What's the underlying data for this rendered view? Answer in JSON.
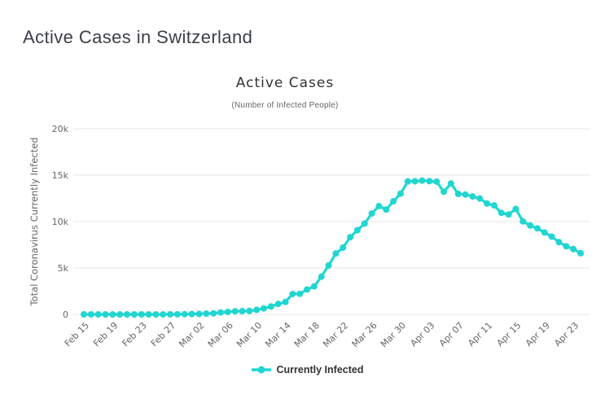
{
  "page": {
    "title": "Active Cases in Switzerland"
  },
  "colors": {
    "series_line": "#21d6d1",
    "gridline": "#e6e6e6",
    "axis_text": "#666666",
    "chart_title_text": "#333333",
    "page_title_text": "#3b3f46"
  },
  "chart_data": {
    "type": "line",
    "title": "Active Cases",
    "subtitle": "(Number of Infected People)",
    "xlabel": "",
    "ylabel": "Total Coronavirus Currently Infected",
    "ylim": [
      0,
      20000
    ],
    "grid": "horizontal",
    "legend_position": "bottom",
    "y_ticks": [
      {
        "value": 0,
        "label": "0"
      },
      {
        "value": 5000,
        "label": "5k"
      },
      {
        "value": 10000,
        "label": "10k"
      },
      {
        "value": 15000,
        "label": "15k"
      },
      {
        "value": 20000,
        "label": "20k"
      }
    ],
    "x_tick_interval": 4,
    "x_tick_labels": [
      "Feb 15",
      "Feb 19",
      "Feb 23",
      "Feb 27",
      "Mar 02",
      "Mar 06",
      "Mar 10",
      "Mar 14",
      "Mar 18",
      "Mar 22",
      "Mar 26",
      "Mar 30",
      "Apr 03",
      "Apr 07",
      "Apr 11",
      "Apr 15",
      "Apr 19",
      "Apr 23"
    ],
    "x": [
      "Feb 15",
      "Feb 16",
      "Feb 17",
      "Feb 18",
      "Feb 19",
      "Feb 20",
      "Feb 21",
      "Feb 22",
      "Feb 23",
      "Feb 24",
      "Feb 25",
      "Feb 26",
      "Feb 27",
      "Feb 28",
      "Feb 29",
      "Mar 01",
      "Mar 02",
      "Mar 03",
      "Mar 04",
      "Mar 05",
      "Mar 06",
      "Mar 07",
      "Mar 08",
      "Mar 09",
      "Mar 10",
      "Mar 11",
      "Mar 12",
      "Mar 13",
      "Mar 14",
      "Mar 15",
      "Mar 16",
      "Mar 17",
      "Mar 18",
      "Mar 19",
      "Mar 20",
      "Mar 21",
      "Mar 22",
      "Mar 23",
      "Mar 24",
      "Mar 25",
      "Mar 26",
      "Mar 27",
      "Mar 28",
      "Mar 29",
      "Mar 30",
      "Mar 31",
      "Apr 01",
      "Apr 02",
      "Apr 03",
      "Apr 04",
      "Apr 05",
      "Apr 06",
      "Apr 07",
      "Apr 08",
      "Apr 09",
      "Apr 10",
      "Apr 11",
      "Apr 12",
      "Apr 13",
      "Apr 14",
      "Apr 15",
      "Apr 16",
      "Apr 17",
      "Apr 18",
      "Apr 19",
      "Apr 20",
      "Apr 21",
      "Apr 22",
      "Apr 23",
      "Apr 24"
    ],
    "series": [
      {
        "name": "Currently Infected",
        "color": "#21d6d1",
        "values": [
          1,
          1,
          1,
          1,
          1,
          1,
          1,
          1,
          1,
          1,
          1,
          2,
          8,
          15,
          27,
          42,
          56,
          87,
          114,
          210,
          268,
          337,
          346,
          374,
          491,
          645,
          854,
          1125,
          1341,
          2198,
          2216,
          2680,
          3018,
          4065,
          5272,
          6562,
          7189,
          8312,
          9069,
          9785,
          10868,
          11664,
          11294,
          12177,
          13004,
          14317,
          14342,
          14413,
          14349,
          14301,
          13215,
          14097,
          12983,
          12911,
          12704,
          12482,
          11946,
          11741,
          10937,
          10759,
          11357,
          10018,
          9571,
          9268,
          8821,
          8375,
          7786,
          7339,
          7036,
          6589
        ]
      }
    ]
  }
}
